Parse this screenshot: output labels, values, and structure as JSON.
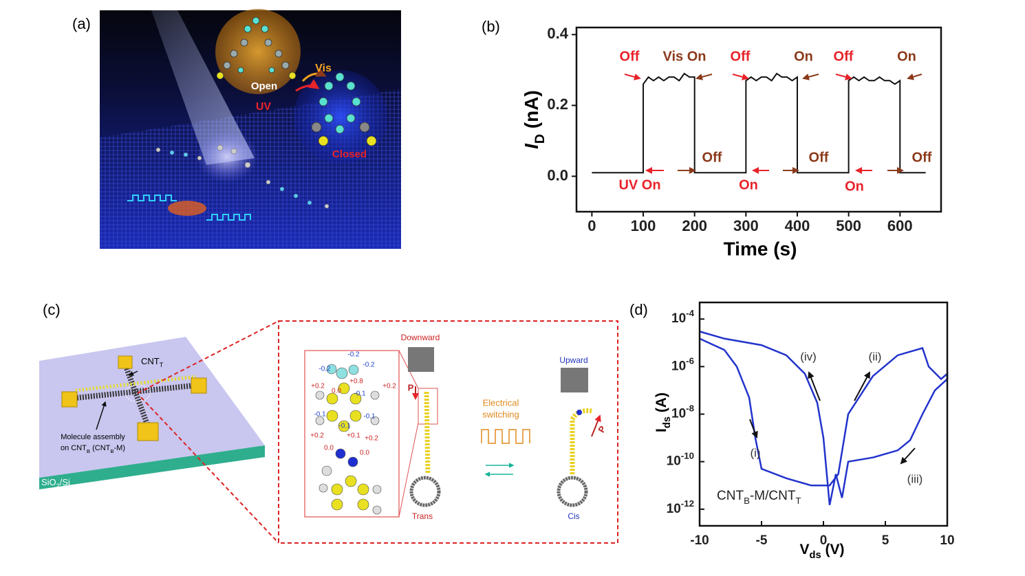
{
  "panel_labels": [
    "(a)",
    "(b)",
    "(c)",
    "(d)"
  ],
  "illustration_a": {
    "open": "Open",
    "vis": "Vis",
    "uv": "UV",
    "closed": "Closed"
  },
  "illustration_c": {
    "cnt_top": [
      "CNT",
      "T"
    ],
    "assembly_line1": "Molecule assembly",
    "assembly_line2": [
      "on CNT",
      "B",
      " (CNT",
      "B",
      "-M)"
    ],
    "substrate": [
      "SiO",
      "2",
      "/Si"
    ],
    "charges": [
      "-0.2",
      "-0.2",
      "-0.2",
      "+0.8",
      "+0.2",
      "+0.2",
      "0.0",
      "-0.1",
      "-0.1",
      "-0.1",
      "-0.1",
      "+0.2",
      "+0.1",
      "+0.2",
      "0.0",
      "0.0"
    ],
    "downward": "Downward",
    "p_down": "P",
    "switching": [
      "Electrical",
      "switching"
    ],
    "upward": "Upward",
    "p_up": "P",
    "trans": "Trans",
    "cis": "Cis"
  },
  "chart_data": [
    {
      "type": "line",
      "x_label": "Time (s)",
      "y_label": [
        "I",
        "D",
        " (nA)"
      ],
      "x": [
        0,
        50,
        100,
        100,
        110,
        120,
        130,
        140,
        150,
        160,
        170,
        180,
        190,
        200,
        200,
        250,
        300,
        300,
        310,
        320,
        330,
        340,
        350,
        360,
        370,
        380,
        390,
        400,
        400,
        450,
        500,
        500,
        510,
        520,
        530,
        540,
        550,
        560,
        570,
        580,
        590,
        600,
        600,
        650
      ],
      "series": [
        {
          "name": "I_D",
          "color": "#111111",
          "values": [
            0.01,
            0.01,
            0.01,
            0.26,
            0.28,
            0.27,
            0.28,
            0.27,
            0.28,
            0.28,
            0.27,
            0.29,
            0.28,
            0.28,
            0.01,
            0.01,
            0.01,
            0.27,
            0.28,
            0.27,
            0.28,
            0.28,
            0.27,
            0.29,
            0.28,
            0.28,
            0.27,
            0.28,
            0.01,
            0.01,
            0.01,
            0.27,
            0.28,
            0.27,
            0.28,
            0.27,
            0.27,
            0.28,
            0.27,
            0.27,
            0.26,
            0.27,
            0.01,
            0.01
          ]
        }
      ],
      "xlim": [
        -30,
        680
      ],
      "xticks": [
        0,
        100,
        200,
        300,
        400,
        500,
        600
      ],
      "ylim": [
        -0.1,
        0.42
      ],
      "yticks": [
        {
          "value": 0,
          "label": "0.0"
        },
        0.2,
        0.4
      ],
      "annotations": [
        {
          "text": "Off",
          "color": "#e8232a"
        },
        {
          "text": "Vis On",
          "color": "#8b3a1a"
        },
        {
          "text": "Off",
          "color": "#e8232a"
        },
        {
          "text": "On",
          "color": "#8b3a1a"
        },
        {
          "text": "Off",
          "color": "#e8232a"
        },
        {
          "text": "On",
          "color": "#8b3a1a"
        },
        {
          "text": "UV On",
          "color": "#e8232a"
        },
        {
          "text": "Off",
          "color": "#8b3a1a"
        },
        {
          "text": "On",
          "color": "#e8232a"
        },
        {
          "text": "Off",
          "color": "#8b3a1a"
        },
        {
          "text": "On",
          "color": "#e8232a"
        },
        {
          "text": "Off",
          "color": "#8b3a1a"
        }
      ]
    },
    {
      "type": "line",
      "x_label": [
        "V",
        "ds",
        " (V)"
      ],
      "y_label": [
        "I",
        "ds",
        " (A)"
      ],
      "log_y": true,
      "x": [
        -10,
        -8,
        -5,
        -3,
        -1.5,
        -0.5,
        0,
        0.5,
        1,
        1.5,
        2,
        4,
        6,
        7,
        8,
        9,
        10,
        10,
        9.5,
        8.5,
        8,
        6,
        4,
        2,
        1.2,
        0.5,
        -1,
        -3,
        -5,
        -5.5,
        -6,
        -7,
        -8,
        -10
      ],
      "series": [
        {
          "name": "CNT_B-M/CNT_T",
          "color": "#2233cc",
          "values": [
            3e-05,
            1.5e-05,
            8e-06,
            3e-06,
            5e-07,
            3e-08,
            1e-09,
            1.5e-12,
            3e-11,
            3e-12,
            1e-10,
            1.5e-10,
            3e-10,
            8e-10,
            1e-08,
            1e-07,
            3e-07,
            5e-07,
            3e-07,
            1e-06,
            6e-06,
            3e-06,
            4e-07,
            1e-08,
            3e-11,
            1e-11,
            1e-11,
            2e-11,
            5e-11,
            1e-09,
            5e-08,
            1e-06,
            5e-06,
            1.5e-05
          ]
        }
      ],
      "xlim": [
        -10,
        10
      ],
      "xticks": [
        -10,
        -5,
        0,
        5,
        10
      ],
      "ylim": [
        2e-13,
        0.0005
      ],
      "yticks": [
        {
          "value": 1e-12,
          "label": [
            "10",
            "-12"
          ]
        },
        {
          "value": 1e-10,
          "label": [
            "10",
            "-10"
          ]
        },
        {
          "value": 1e-08,
          "label": [
            "10",
            "-8"
          ]
        },
        {
          "value": 1e-06,
          "label": [
            "10",
            "-6"
          ]
        },
        {
          "value": 0.0001,
          "label": [
            "10",
            "-4"
          ]
        }
      ],
      "annotations": [
        {
          "text": "(iv)"
        },
        {
          "text": "(ii)"
        },
        {
          "text": "(i)"
        },
        {
          "text": "(iii)"
        }
      ],
      "device_label": [
        "CNT",
        "B",
        "-M/CNT",
        "T"
      ]
    }
  ]
}
